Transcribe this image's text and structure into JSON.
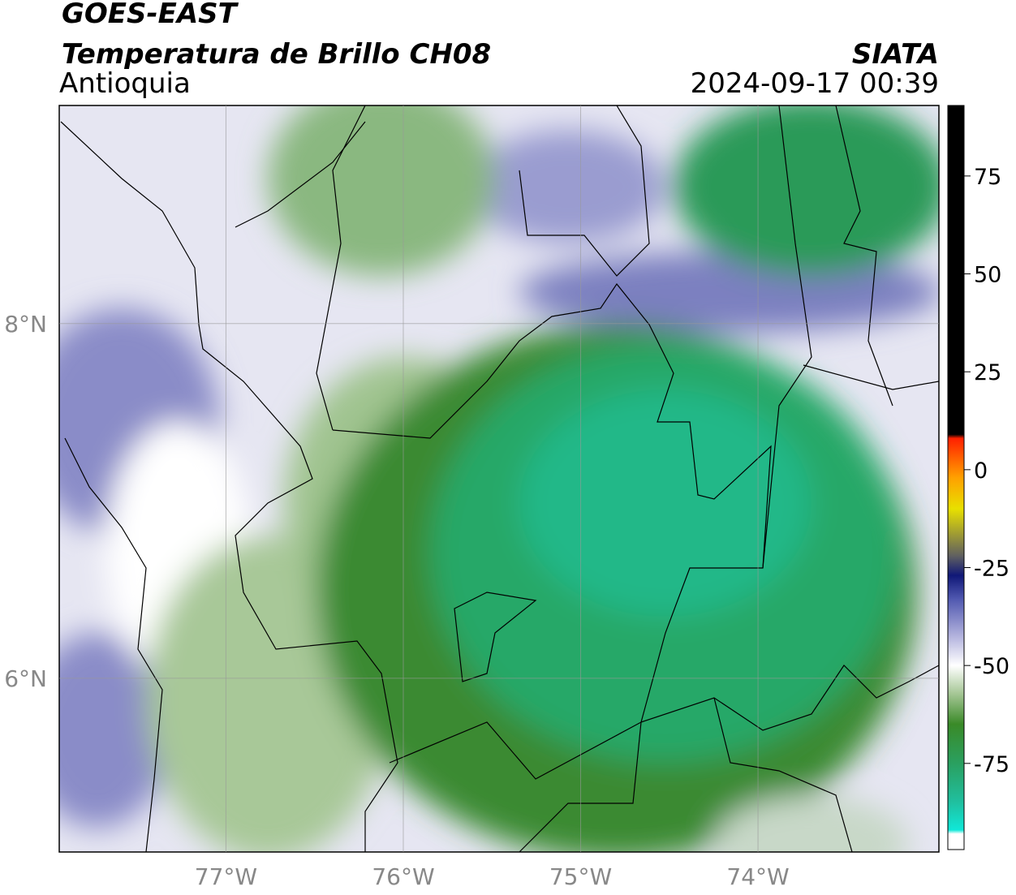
{
  "header": {
    "line1": "GOES-EAST",
    "line2": "Temperatura de Brillo CH08",
    "region": "Antioquia",
    "source": "SIATA",
    "datetime": "2024-09-17 00:39"
  },
  "map": {
    "xlim": [
      -77.94,
      -72.98
    ],
    "ylim": [
      5.02,
      9.23
    ],
    "xticks": [
      {
        "value": -77,
        "label": "77°W"
      },
      {
        "value": -76,
        "label": "76°W"
      },
      {
        "value": -75,
        "label": "75°W"
      },
      {
        "value": -74,
        "label": "74°W"
      }
    ],
    "yticks": [
      {
        "value": 8,
        "label": "8°N"
      },
      {
        "value": 6,
        "label": "6°N"
      }
    ],
    "grid": true
  },
  "colorbar": {
    "lim": [
      -97,
      93
    ],
    "ticks": [
      75,
      50,
      25,
      0,
      -25,
      -50,
      -75
    ],
    "stops": [
      {
        "value": -97,
        "color": "#ffffff"
      },
      {
        "value": -93,
        "color": "#ffffff"
      },
      {
        "value": -92,
        "color": "#10e8d8"
      },
      {
        "value": -85,
        "color": "#20c0a0"
      },
      {
        "value": -75,
        "color": "#2aa060"
      },
      {
        "value": -65,
        "color": "#3a8a28"
      },
      {
        "value": -57,
        "color": "#a8c898"
      },
      {
        "value": -50,
        "color": "#ffffff"
      },
      {
        "value": -43,
        "color": "#b8b8e0"
      },
      {
        "value": -33,
        "color": "#5058b0"
      },
      {
        "value": -27,
        "color": "#101878"
      },
      {
        "value": -22,
        "color": "#606060"
      },
      {
        "value": -10,
        "color": "#e8e000"
      },
      {
        "value": -2,
        "color": "#ffa000"
      },
      {
        "value": 8,
        "color": "#ff2000"
      },
      {
        "value": 9,
        "color": "#000000"
      },
      {
        "value": 93,
        "color": "#000000"
      }
    ]
  }
}
